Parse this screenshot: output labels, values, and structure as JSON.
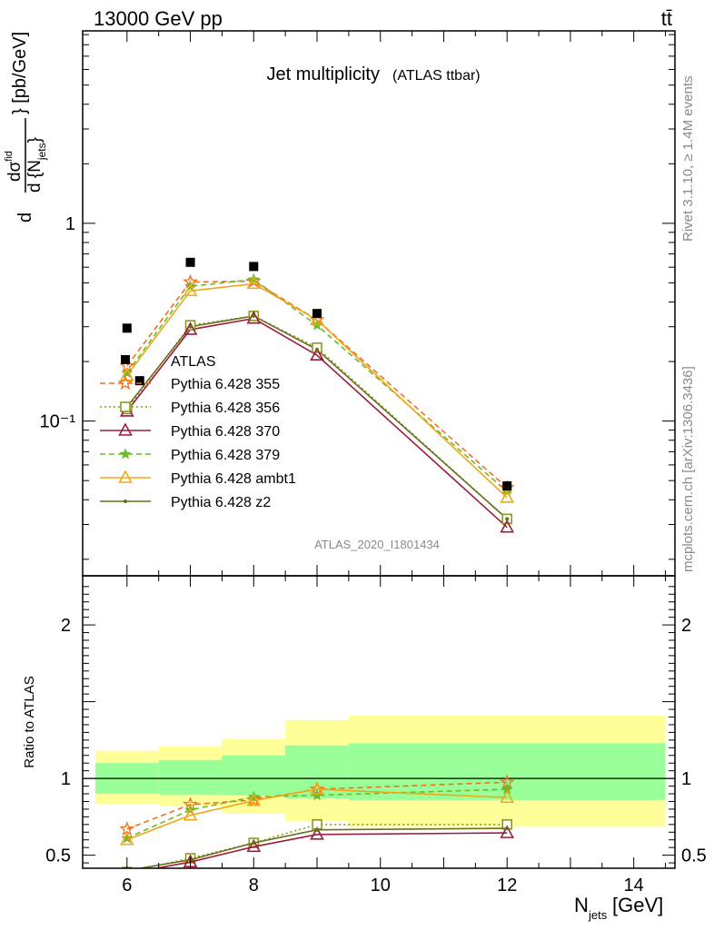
{
  "header": {
    "beam": "13000 GeV pp",
    "process": "tt̄"
  },
  "side_labels": {
    "rivet": "Rivet 3.1.10, ≥ 1.4M events",
    "mcplots": "mcplots.cern.ch [arXiv:1306.3436]"
  },
  "chart_data": [
    {
      "type": "scatter",
      "title": "Jet multiplicity",
      "title_suffix": "(ATLAS ttbar)",
      "watermark": "ATLAS_2020_I1801434",
      "xlabel": "N",
      "xlabel_sub": "jets",
      "xlabel_unit": " [GeV]",
      "ylabel": "dσ/d{N_jets} [pb/GeV]",
      "yscale": "log",
      "xlim": [
        5.3,
        14.65
      ],
      "ylim": [
        0.0165,
        9.4
      ],
      "y_ticks": [
        {
          "value": 1,
          "label": "1"
        },
        {
          "value": 0.1,
          "label": "10⁻¹"
        }
      ],
      "x": [
        6,
        6.2,
        7,
        8,
        9,
        12
      ],
      "data": {
        "name": "ATLAS",
        "x": [
          6,
          6.2,
          7,
          8,
          9,
          12
        ],
        "y": [
          0.295,
          0.16,
          0.635,
          0.605,
          0.35,
          0.047
        ]
      },
      "series": [
        {
          "name": "Pythia 6.428 355",
          "color": "#f07020",
          "style": "dashed",
          "marker": "star",
          "x": [
            6,
            7,
            8,
            9,
            12
          ],
          "y": [
            0.19,
            0.505,
            0.51,
            0.325,
            0.046
          ]
        },
        {
          "name": "Pythia 6.428 356",
          "color": "#8c9a1c",
          "style": "dotted",
          "marker": "open-square",
          "x": [
            6,
            7,
            8,
            9,
            12
          ],
          "y": [
            0.115,
            0.305,
            0.34,
            0.235,
            0.032
          ]
        },
        {
          "name": "Pythia 6.428 370",
          "color": "#9b1c3c",
          "style": "solid",
          "marker": "open-triangle",
          "x": [
            6,
            7,
            8,
            9,
            12
          ],
          "y": [
            0.112,
            0.29,
            0.33,
            0.215,
            0.029
          ]
        },
        {
          "name": "Pythia 6.428 379",
          "color": "#6aba2a",
          "style": "dashed",
          "marker": "small-star",
          "x": [
            6,
            7,
            8,
            9,
            12
          ],
          "y": [
            0.175,
            0.48,
            0.52,
            0.305,
            0.044
          ]
        },
        {
          "name": "Pythia 6.428 ambt1",
          "color": "#f0a818",
          "style": "solid",
          "marker": "open-triangle",
          "x": [
            6,
            7,
            8,
            9,
            12
          ],
          "y": [
            0.17,
            0.455,
            0.495,
            0.325,
            0.041
          ]
        },
        {
          "name": "Pythia 6.428 z2",
          "color": "#6b6e1c",
          "style": "solid",
          "marker": "dot",
          "x": [
            6,
            7,
            8,
            9,
            12
          ],
          "y": [
            0.118,
            0.3,
            0.34,
            0.23,
            0.032
          ]
        }
      ]
    },
    {
      "type": "line",
      "ylabel": "Ratio to ATLAS",
      "ylim": [
        0.415,
        2.32
      ],
      "y_ticks": [
        {
          "value": 0.5,
          "label": "0.5"
        },
        {
          "value": 1,
          "label": "1"
        },
        {
          "value": 2,
          "label": "2"
        }
      ],
      "x_ticks": [
        {
          "value": 6,
          "label": "6"
        },
        {
          "value": 8,
          "label": "8"
        },
        {
          "value": 10,
          "label": "10"
        },
        {
          "value": 12,
          "label": "12"
        },
        {
          "value": 14,
          "label": "14"
        }
      ],
      "uncertainty_bands": [
        {
          "x0": 5.5,
          "x1": 6.5,
          "inner": [
            0.9,
            1.1
          ],
          "outer": [
            0.835,
            1.18
          ]
        },
        {
          "x0": 6.5,
          "x1": 7.5,
          "inner": [
            0.895,
            1.12
          ],
          "outer": [
            0.82,
            1.21
          ]
        },
        {
          "x0": 7.5,
          "x1": 8.5,
          "inner": [
            0.89,
            1.15
          ],
          "outer": [
            0.77,
            1.255
          ]
        },
        {
          "x0": 8.5,
          "x1": 9.5,
          "inner": [
            0.87,
            1.215
          ],
          "outer": [
            0.72,
            1.38
          ]
        },
        {
          "x0": 9.5,
          "x1": 14.5,
          "inner": [
            0.86,
            1.23
          ],
          "outer": [
            0.685,
            1.41
          ]
        }
      ],
      "series": [
        {
          "name": "Pythia 6.428 355",
          "x": [
            6,
            7,
            8,
            9,
            12
          ],
          "y": [
            0.67,
            0.83,
            0.86,
            0.93,
            0.975
          ]
        },
        {
          "name": "Pythia 6.428 356",
          "x": [
            6,
            7,
            8,
            9,
            12
          ],
          "y": [
            0.39,
            0.48,
            0.58,
            0.7,
            0.7
          ]
        },
        {
          "name": "Pythia 6.428 370",
          "x": [
            6,
            7,
            8,
            9,
            12
          ],
          "y": [
            0.38,
            0.455,
            0.555,
            0.635,
            0.645
          ]
        },
        {
          "name": "Pythia 6.428 379",
          "x": [
            6,
            7,
            8,
            9,
            12
          ],
          "y": [
            0.61,
            0.795,
            0.88,
            0.89,
            0.93
          ]
        },
        {
          "name": "Pythia 6.428 ambt1",
          "x": [
            6,
            7,
            8,
            9,
            12
          ],
          "y": [
            0.6,
            0.76,
            0.855,
            0.93,
            0.875
          ]
        },
        {
          "name": "Pythia 6.428 z2",
          "x": [
            6,
            7,
            8,
            9,
            12
          ],
          "y": [
            0.4,
            0.47,
            0.58,
            0.665,
            0.675
          ]
        }
      ]
    }
  ]
}
